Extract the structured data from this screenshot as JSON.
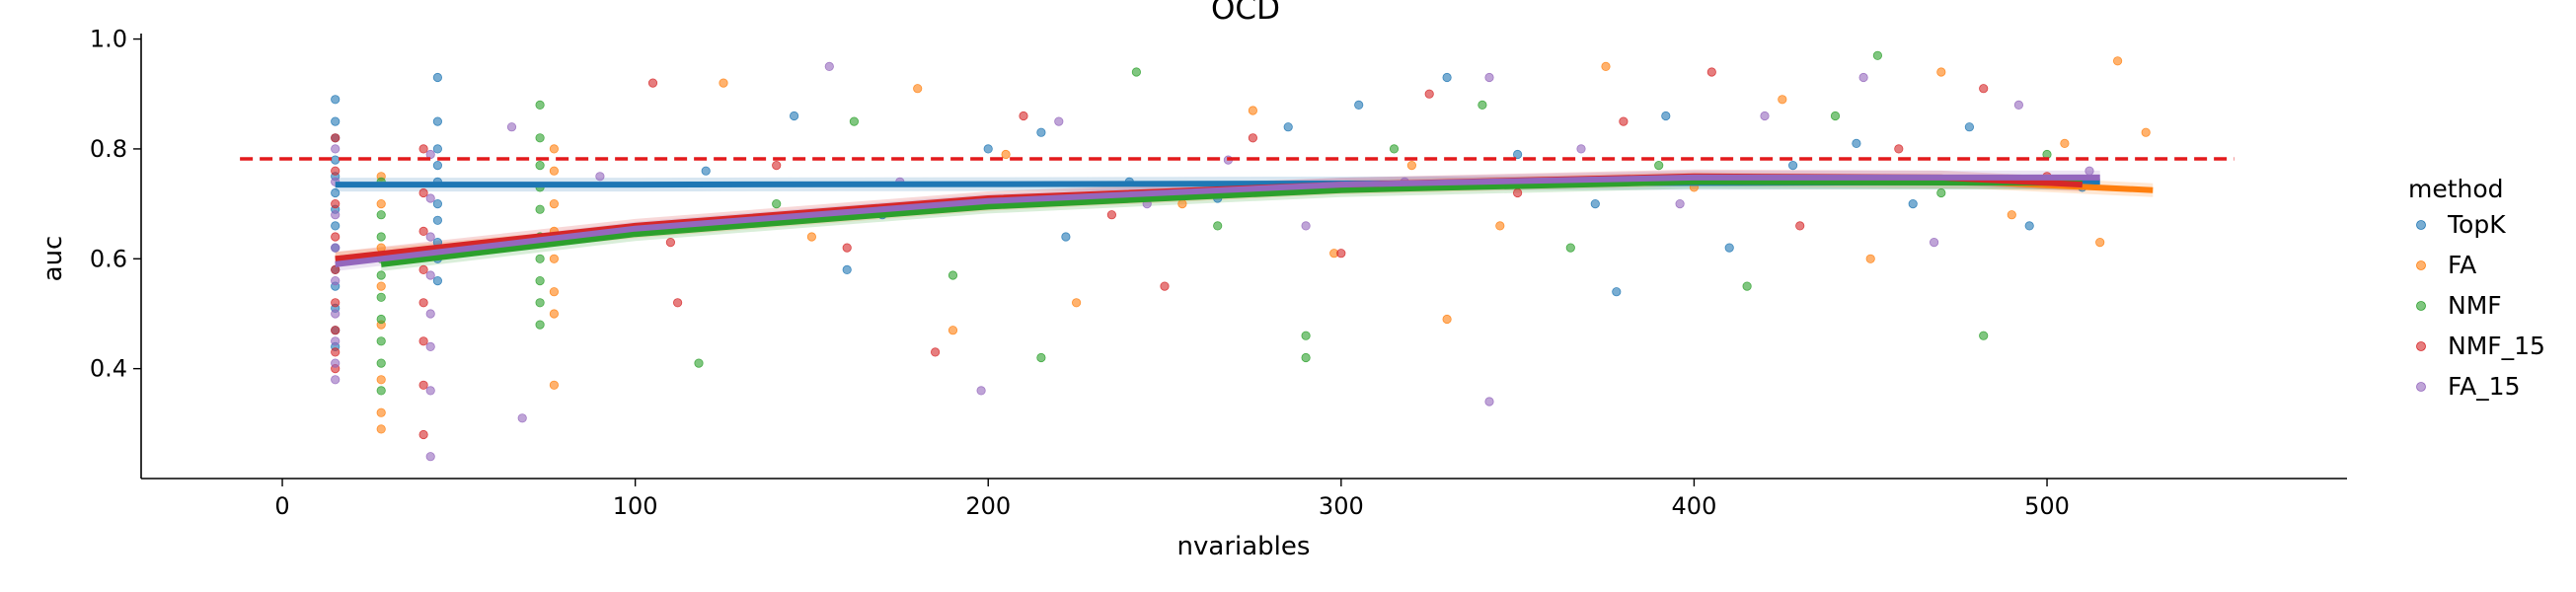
{
  "chart_data": {
    "type": "scatter",
    "title": "OCD",
    "xlabel": "nvariables",
    "ylabel": "auc",
    "xlim": [
      -40,
      585
    ],
    "ylim": [
      0.2,
      1.01
    ],
    "xticks": [
      0,
      100,
      200,
      300,
      400,
      500
    ],
    "yticks": [
      0.4,
      0.6,
      0.8,
      1.0
    ],
    "ytick_labels": [
      "0.4",
      "0.6",
      "0.8",
      "1.0"
    ],
    "grid": false,
    "legend": {
      "title": "method",
      "placement": "right"
    },
    "reference_line": {
      "y": 0.782,
      "x_from": -12,
      "x_to": 553,
      "color": "#e31a1c",
      "style": "dashed"
    },
    "series": [
      {
        "name": "TopK",
        "color": "#1f77b4",
        "x_range": [
          15,
          515
        ],
        "fit": {
          "x": [
            15,
            100,
            200,
            300,
            400,
            515
          ],
          "y": [
            0.735,
            0.735,
            0.736,
            0.737,
            0.738,
            0.74
          ]
        },
        "points": [
          [
            15,
            0.89
          ],
          [
            15,
            0.85
          ],
          [
            15,
            0.82
          ],
          [
            15,
            0.78
          ],
          [
            15,
            0.75
          ],
          [
            15,
            0.72
          ],
          [
            15,
            0.69
          ],
          [
            15,
            0.66
          ],
          [
            15,
            0.62
          ],
          [
            15,
            0.58
          ],
          [
            15,
            0.55
          ],
          [
            15,
            0.51
          ],
          [
            15,
            0.47
          ],
          [
            15,
            0.44
          ],
          [
            44,
            0.93
          ],
          [
            44,
            0.85
          ],
          [
            44,
            0.8
          ],
          [
            44,
            0.77
          ],
          [
            44,
            0.74
          ],
          [
            44,
            0.7
          ],
          [
            44,
            0.67
          ],
          [
            44,
            0.63
          ],
          [
            44,
            0.6
          ],
          [
            44,
            0.56
          ],
          [
            120,
            0.76
          ],
          [
            145,
            0.86
          ],
          [
            170,
            0.68
          ],
          [
            200,
            0.8
          ],
          [
            215,
            0.83
          ],
          [
            240,
            0.74
          ],
          [
            265,
            0.71
          ],
          [
            285,
            0.84
          ],
          [
            305,
            0.88
          ],
          [
            330,
            0.93
          ],
          [
            350,
            0.79
          ],
          [
            372,
            0.7
          ],
          [
            392,
            0.86
          ],
          [
            410,
            0.62
          ],
          [
            428,
            0.77
          ],
          [
            446,
            0.81
          ],
          [
            462,
            0.7
          ],
          [
            478,
            0.84
          ],
          [
            495,
            0.66
          ],
          [
            510,
            0.73
          ],
          [
            378,
            0.54
          ],
          [
            222,
            0.64
          ],
          [
            160,
            0.58
          ]
        ]
      },
      {
        "name": "FA",
        "color": "#ff7f0e",
        "x_range": [
          15,
          530
        ],
        "fit": {
          "x": [
            15,
            100,
            200,
            300,
            400,
            480,
            530
          ],
          "y": [
            0.6,
            0.65,
            0.7,
            0.73,
            0.745,
            0.74,
            0.725
          ]
        },
        "points": [
          [
            28,
            0.75
          ],
          [
            28,
            0.7
          ],
          [
            28,
            0.62
          ],
          [
            28,
            0.55
          ],
          [
            28,
            0.48
          ],
          [
            28,
            0.38
          ],
          [
            28,
            0.32
          ],
          [
            28,
            0.29
          ],
          [
            77,
            0.8
          ],
          [
            77,
            0.76
          ],
          [
            77,
            0.7
          ],
          [
            77,
            0.65
          ],
          [
            77,
            0.6
          ],
          [
            77,
            0.54
          ],
          [
            77,
            0.5
          ],
          [
            77,
            0.37
          ],
          [
            125,
            0.92
          ],
          [
            150,
            0.64
          ],
          [
            180,
            0.91
          ],
          [
            205,
            0.79
          ],
          [
            225,
            0.52
          ],
          [
            255,
            0.7
          ],
          [
            275,
            0.87
          ],
          [
            298,
            0.61
          ],
          [
            320,
            0.77
          ],
          [
            345,
            0.66
          ],
          [
            375,
            0.95
          ],
          [
            400,
            0.73
          ],
          [
            425,
            0.89
          ],
          [
            450,
            0.6
          ],
          [
            470,
            0.94
          ],
          [
            490,
            0.68
          ],
          [
            505,
            0.81
          ],
          [
            520,
            0.96
          ],
          [
            528,
            0.83
          ],
          [
            515,
            0.63
          ],
          [
            330,
            0.49
          ],
          [
            190,
            0.47
          ]
        ]
      },
      {
        "name": "NMF",
        "color": "#2ca02c",
        "x_range": [
          28,
          510
        ],
        "fit": {
          "x": [
            28,
            100,
            200,
            300,
            400,
            510
          ],
          "y": [
            0.59,
            0.645,
            0.695,
            0.725,
            0.74,
            0.738
          ]
        },
        "points": [
          [
            28,
            0.74
          ],
          [
            28,
            0.68
          ],
          [
            28,
            0.64
          ],
          [
            28,
            0.6
          ],
          [
            28,
            0.57
          ],
          [
            28,
            0.53
          ],
          [
            28,
            0.49
          ],
          [
            28,
            0.45
          ],
          [
            28,
            0.41
          ],
          [
            28,
            0.36
          ],
          [
            73,
            0.88
          ],
          [
            73,
            0.82
          ],
          [
            73,
            0.77
          ],
          [
            73,
            0.73
          ],
          [
            73,
            0.69
          ],
          [
            73,
            0.64
          ],
          [
            73,
            0.6
          ],
          [
            73,
            0.56
          ],
          [
            73,
            0.52
          ],
          [
            73,
            0.48
          ],
          [
            118,
            0.41
          ],
          [
            140,
            0.7
          ],
          [
            162,
            0.85
          ],
          [
            190,
            0.57
          ],
          [
            215,
            0.42
          ],
          [
            242,
            0.94
          ],
          [
            265,
            0.66
          ],
          [
            290,
            0.42
          ],
          [
            315,
            0.8
          ],
          [
            340,
            0.88
          ],
          [
            365,
            0.62
          ],
          [
            390,
            0.77
          ],
          [
            415,
            0.55
          ],
          [
            440,
            0.86
          ],
          [
            452,
            0.97
          ],
          [
            470,
            0.72
          ],
          [
            482,
            0.46
          ],
          [
            500,
            0.79
          ],
          [
            290,
            0.46
          ]
        ]
      },
      {
        "name": "NMF_15",
        "color": "#d62728",
        "x_range": [
          15,
          510
        ],
        "fit": {
          "x": [
            15,
            100,
            200,
            300,
            400,
            470,
            510
          ],
          "y": [
            0.6,
            0.66,
            0.71,
            0.735,
            0.75,
            0.748,
            0.735
          ]
        },
        "points": [
          [
            15,
            0.82
          ],
          [
            15,
            0.76
          ],
          [
            15,
            0.7
          ],
          [
            15,
            0.64
          ],
          [
            15,
            0.58
          ],
          [
            15,
            0.52
          ],
          [
            15,
            0.47
          ],
          [
            15,
            0.43
          ],
          [
            15,
            0.4
          ],
          [
            40,
            0.8
          ],
          [
            40,
            0.72
          ],
          [
            40,
            0.65
          ],
          [
            40,
            0.58
          ],
          [
            40,
            0.52
          ],
          [
            40,
            0.45
          ],
          [
            40,
            0.37
          ],
          [
            40,
            0.28
          ],
          [
            105,
            0.92
          ],
          [
            112,
            0.52
          ],
          [
            140,
            0.77
          ],
          [
            160,
            0.62
          ],
          [
            185,
            0.43
          ],
          [
            210,
            0.86
          ],
          [
            235,
            0.68
          ],
          [
            250,
            0.55
          ],
          [
            275,
            0.82
          ],
          [
            300,
            0.61
          ],
          [
            325,
            0.9
          ],
          [
            350,
            0.72
          ],
          [
            380,
            0.85
          ],
          [
            405,
            0.94
          ],
          [
            430,
            0.66
          ],
          [
            458,
            0.8
          ],
          [
            482,
            0.91
          ],
          [
            500,
            0.75
          ],
          [
            110,
            0.63
          ]
        ]
      },
      {
        "name": "FA_15",
        "color": "#9467bd",
        "x_range": [
          15,
          515
        ],
        "fit": {
          "x": [
            15,
            100,
            200,
            300,
            400,
            515
          ],
          "y": [
            0.59,
            0.655,
            0.705,
            0.735,
            0.748,
            0.748
          ]
        },
        "points": [
          [
            15,
            0.8
          ],
          [
            15,
            0.74
          ],
          [
            15,
            0.68
          ],
          [
            15,
            0.62
          ],
          [
            15,
            0.56
          ],
          [
            15,
            0.5
          ],
          [
            15,
            0.45
          ],
          [
            15,
            0.41
          ],
          [
            15,
            0.38
          ],
          [
            42,
            0.79
          ],
          [
            42,
            0.71
          ],
          [
            42,
            0.64
          ],
          [
            42,
            0.57
          ],
          [
            42,
            0.5
          ],
          [
            42,
            0.44
          ],
          [
            42,
            0.36
          ],
          [
            42,
            0.24
          ],
          [
            65,
            0.84
          ],
          [
            68,
            0.31
          ],
          [
            90,
            0.75
          ],
          [
            130,
            0.67
          ],
          [
            155,
            0.95
          ],
          [
            175,
            0.74
          ],
          [
            198,
            0.36
          ],
          [
            220,
            0.85
          ],
          [
            245,
            0.7
          ],
          [
            268,
            0.78
          ],
          [
            290,
            0.66
          ],
          [
            318,
            0.74
          ],
          [
            342,
            0.93
          ],
          [
            342,
            0.34
          ],
          [
            368,
            0.8
          ],
          [
            396,
            0.7
          ],
          [
            420,
            0.86
          ],
          [
            448,
            0.93
          ],
          [
            468,
            0.63
          ],
          [
            492,
            0.88
          ],
          [
            512,
            0.76
          ]
        ]
      }
    ]
  }
}
